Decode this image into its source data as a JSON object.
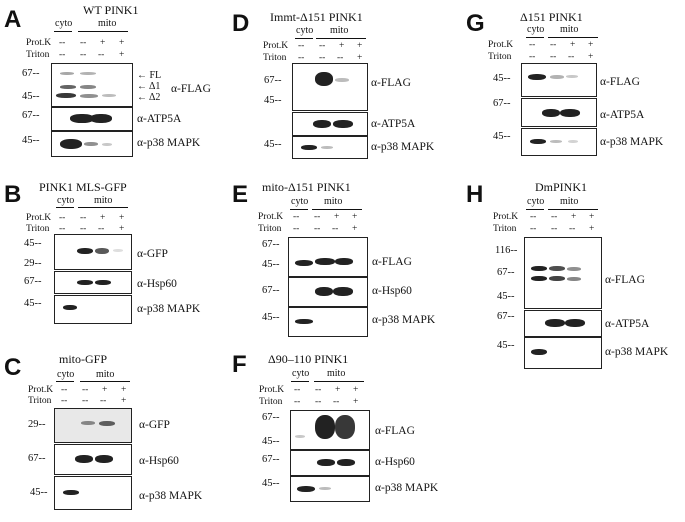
{
  "labels": {
    "cyto": "cyto",
    "mito": "mito",
    "protk": "Prot.K",
    "triton": "Triton",
    "minus": "--",
    "plus": "+"
  },
  "panels": {
    "A": {
      "letter": "A",
      "title": "WT PINK1",
      "mw": [
        "67--",
        "45--",
        "67--",
        "45--"
      ],
      "ab": [
        "α-FLAG",
        "α-ATP5A",
        "α-p38 MAPK"
      ],
      "arrows": [
        "FL",
        "Δ1",
        "Δ2"
      ]
    },
    "B": {
      "letter": "B",
      "title": "PINK1 MLS-GFP",
      "mw": [
        "45--",
        "29--",
        "67--",
        "45--"
      ],
      "ab": [
        "α-GFP",
        "α-Hsp60",
        "α-p38 MAPK"
      ]
    },
    "C": {
      "letter": "C",
      "title": "mito-GFP",
      "mw": [
        "29--",
        "67--",
        "45--"
      ],
      "ab": [
        "α-GFP",
        "α-Hsp60",
        "α-p38 MAPK"
      ]
    },
    "D": {
      "letter": "D",
      "title": "Immt-Δ151 PINK1",
      "mw": [
        "67--",
        "45--",
        "45--"
      ],
      "ab": [
        "α-FLAG",
        "α-ATP5A",
        "α-p38 MAPK"
      ]
    },
    "E": {
      "letter": "E",
      "title": "mito-Δ151 PINK1",
      "mw": [
        "67--",
        "45--",
        "67--",
        "45--"
      ],
      "ab": [
        "α-FLAG",
        "α-Hsp60",
        "α-p38 MAPK"
      ]
    },
    "F": {
      "letter": "F",
      "title": "Δ90–110 PINK1",
      "mw": [
        "67--",
        "45--",
        "67--",
        "45--"
      ],
      "ab": [
        "α-FLAG",
        "α-Hsp60",
        "α-p38 MAPK"
      ]
    },
    "G": {
      "letter": "G",
      "title": "Δ151 PINK1",
      "mw": [
        "45--",
        "67--",
        "45--"
      ],
      "ab": [
        "α-FLAG",
        "α-ATP5A",
        "α-p38 MAPK"
      ]
    },
    "H": {
      "letter": "H",
      "title": "DmPINK1",
      "mw": [
        "116--",
        "67--",
        "45--",
        "67--",
        "45--"
      ],
      "ab": [
        "α-FLAG",
        "α-ATP5A",
        "α-p38 MAPK"
      ]
    }
  }
}
